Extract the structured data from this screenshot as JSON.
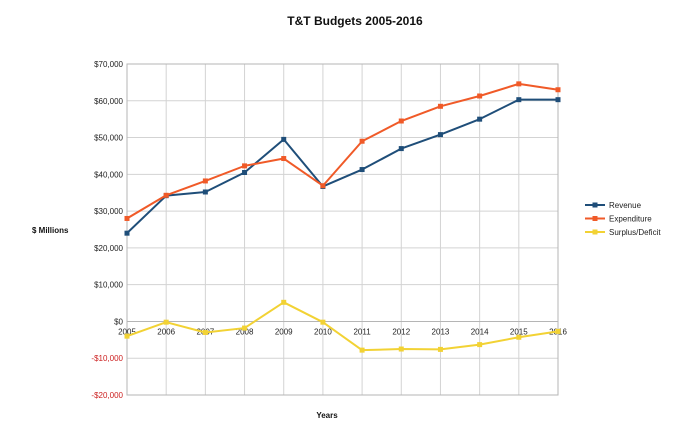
{
  "chart_data": {
    "type": "line",
    "title": "T&T Budgets 2005-2016",
    "xlabel": "Years",
    "ylabel": "$ Millions",
    "categories": [
      "2005",
      "2006",
      "2007",
      "2008",
      "2009",
      "2010",
      "2011",
      "2012",
      "2013",
      "2014",
      "2015",
      "2016"
    ],
    "ylim": [
      -20000,
      70000
    ],
    "yticks": [
      -20000,
      -10000,
      0,
      10000,
      20000,
      30000,
      40000,
      50000,
      60000,
      70000
    ],
    "ytick_labels": [
      "-$20,000",
      "-$10,000",
      "$0",
      "$10,000",
      "$20,000",
      "$30,000",
      "$40,000",
      "$50,000",
      "$60,000",
      "$70,000"
    ],
    "grid": true,
    "legend_position": "right",
    "series": [
      {
        "name": "Revenue",
        "color": "#1f4e79",
        "values": [
          24000,
          34200,
          35200,
          40500,
          49500,
          36700,
          41300,
          47000,
          50800,
          55000,
          60300,
          60300
        ]
      },
      {
        "name": "Expenditure",
        "color": "#f05a28",
        "values": [
          28000,
          34300,
          38200,
          42300,
          44300,
          36900,
          49000,
          54500,
          58500,
          61300,
          64600,
          63000
        ]
      },
      {
        "name": "Surplus/Deficit",
        "color": "#f2d234",
        "values": [
          -4000,
          -200,
          -3000,
          -1800,
          5200,
          -200,
          -7800,
          -7500,
          -7600,
          -6300,
          -4300,
          -2700
        ]
      }
    ]
  }
}
